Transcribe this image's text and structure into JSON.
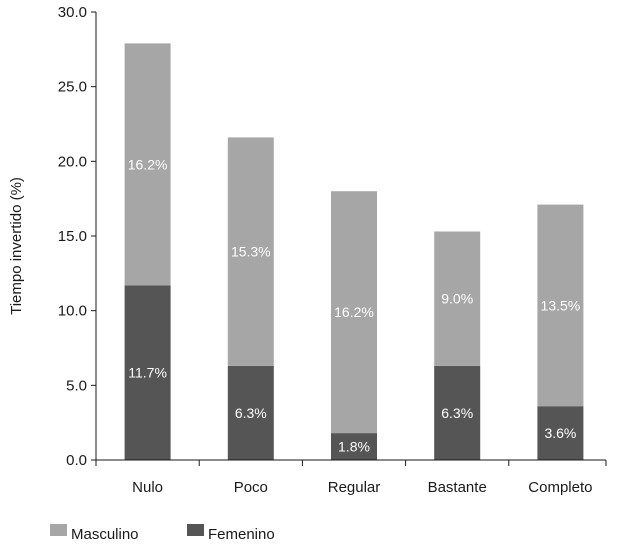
{
  "chart_data": {
    "type": "bar",
    "stacked": true,
    "categories": [
      "Nulo",
      "Poco",
      "Regular",
      "Bastante",
      "Completo"
    ],
    "series": [
      {
        "name": "Femenino",
        "values": [
          11.7,
          6.3,
          1.8,
          6.3,
          3.6
        ],
        "labels": [
          "11.7%",
          "6.3%",
          "1.8%",
          "6.3%",
          "3.6%"
        ],
        "color": "#555555"
      },
      {
        "name": "Masculino",
        "values": [
          16.2,
          15.3,
          16.2,
          9.0,
          13.5
        ],
        "labels": [
          "16.2%",
          "15.3%",
          "16.2%",
          "9.0%",
          "13.5%"
        ],
        "color": "#a6a6a6"
      }
    ],
    "title": "",
    "xlabel": "",
    "ylabel": "Tiempo invertido (%)",
    "ylim": [
      0,
      30
    ],
    "yticks": [
      "0.0",
      "5.0",
      "10.0",
      "15.0",
      "20.0",
      "25.0",
      "30.0"
    ],
    "grid": false,
    "legend": {
      "placement": "bottom-left",
      "entries": [
        "Masculino",
        "Femenino"
      ]
    }
  }
}
